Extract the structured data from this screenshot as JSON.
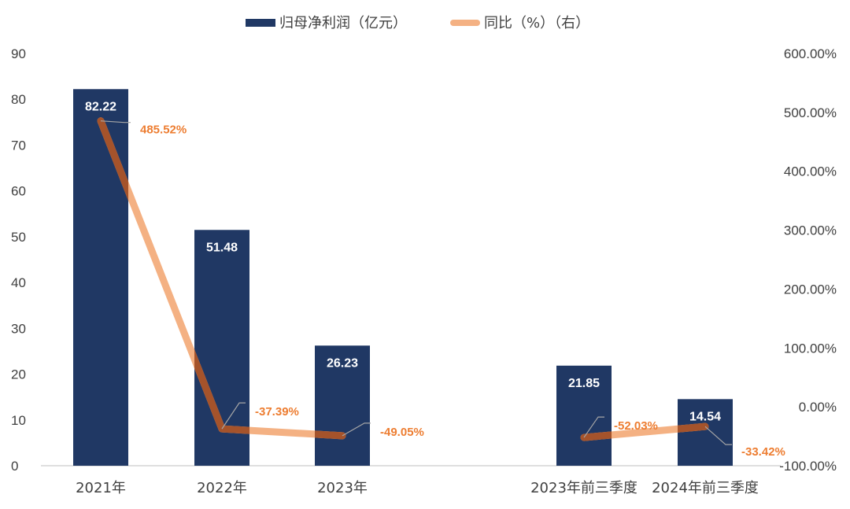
{
  "chart_data": {
    "type": "bar+line",
    "categories": [
      "2021年",
      "2022年",
      "2023年",
      "",
      "2023年前三季度",
      "2024年前三季度"
    ],
    "series": [
      {
        "name": "归母净利润（亿元）",
        "type": "bar",
        "axis": "left",
        "values": [
          82.22,
          51.48,
          26.23,
          null,
          21.85,
          14.54
        ],
        "labels": [
          "82.22",
          "51.48",
          "26.23",
          "",
          "21.85",
          "14.54"
        ]
      },
      {
        "name": "同比（%）（右）",
        "type": "line",
        "axis": "right",
        "values": [
          485.52,
          -37.39,
          -49.05,
          null,
          -52.03,
          -33.42
        ],
        "labels": [
          "485.52%",
          "-37.39%",
          "-49.05%",
          "",
          "-52.03%",
          "-33.42%"
        ]
      }
    ],
    "y_left": {
      "ylim": [
        0,
        90
      ],
      "ticks": [
        "0",
        "10",
        "20",
        "30",
        "40",
        "50",
        "60",
        "70",
        "80",
        "90"
      ]
    },
    "y_right": {
      "ylim": [
        -100,
        600
      ],
      "ticks": [
        "-100.00%",
        "0.00%",
        "100.00%",
        "200.00%",
        "300.00%",
        "400.00%",
        "500.00%",
        "600.00%"
      ]
    },
    "legend": {
      "placement": "top-center",
      "entries": [
        "归母净利润（亿元）",
        "同比（%）（右）"
      ]
    },
    "colors": {
      "bar": "#203864",
      "line": "#F4B183",
      "line_shadow": "#A5532B",
      "label_pct": "#ED7D31",
      "axis_text": "#404040"
    },
    "grid": false
  }
}
